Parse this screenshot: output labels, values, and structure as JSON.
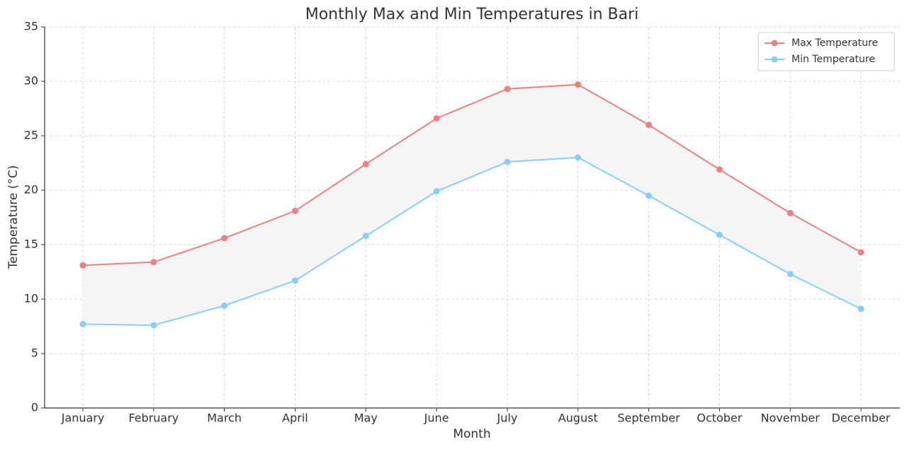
{
  "chart_data": {
    "type": "line",
    "title": "Monthly Max and Min Temperatures in Bari",
    "x_label": "Month",
    "y_label": "Temperature (°C)",
    "categories": [
      "January",
      "February",
      "March",
      "April",
      "May",
      "June",
      "July",
      "August",
      "September",
      "October",
      "November",
      "December"
    ],
    "series": [
      {
        "name": "Max Temperature",
        "color": "#f08080",
        "values": [
          13.1,
          13.4,
          15.6,
          18.1,
          22.4,
          26.6,
          29.3,
          29.7,
          26.0,
          21.9,
          17.9,
          14.3
        ]
      },
      {
        "name": "Min Temperature",
        "color": "#87cefa",
        "values": [
          7.7,
          7.6,
          9.4,
          11.7,
          15.8,
          19.9,
          22.6,
          23.0,
          19.5,
          15.9,
          12.3,
          9.1
        ]
      }
    ],
    "fill_between": true,
    "fill_color": "#f4f4f4",
    "ylim": [
      0,
      35
    ],
    "yticks": [
      0,
      5,
      10,
      15,
      20,
      25,
      30,
      35
    ],
    "grid": true,
    "legend": "upper right"
  }
}
